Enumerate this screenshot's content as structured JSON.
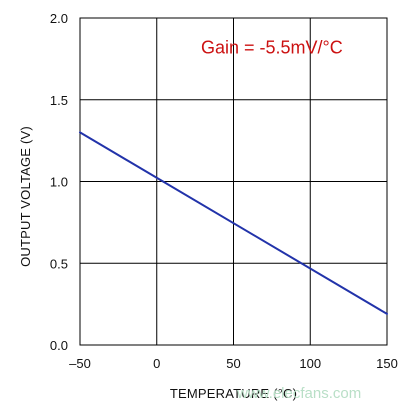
{
  "chart_data": {
    "type": "line",
    "xlabel": "TEMPERATURE (°C)",
    "ylabel": "OUTPUT VOLTAGE (V)",
    "xlim": [
      -50,
      150
    ],
    "ylim": [
      0,
      2.0
    ],
    "x_ticks": [
      -50,
      0,
      50,
      100,
      150
    ],
    "x_tick_labels": [
      "–50",
      "0",
      "50",
      "100",
      "150"
    ],
    "y_ticks": [
      0,
      0.5,
      1.0,
      1.5,
      2.0
    ],
    "y_tick_labels": [
      "0.0",
      "0.5",
      "1.0",
      "1.5",
      "2.0"
    ],
    "grid": true,
    "series": [
      {
        "color": "#2233aa",
        "x": [
          -50,
          150
        ],
        "y": [
          1.3,
          0.19
        ]
      }
    ],
    "annotations": [
      {
        "text": "Gain = -5.5mV/°C",
        "color": "#cc1111"
      }
    ]
  },
  "watermark": {
    "text": "www.elecfans.com",
    "color": "#b9dfc7"
  }
}
